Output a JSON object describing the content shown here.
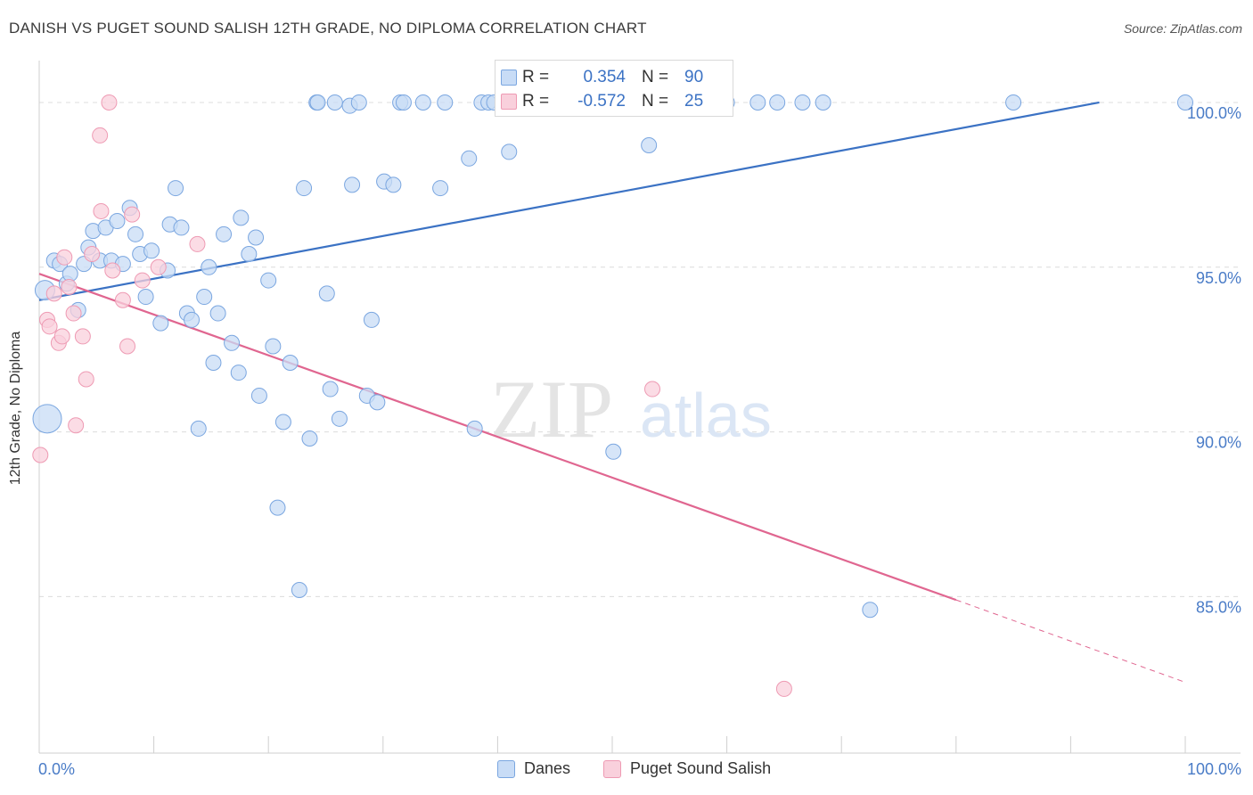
{
  "title": "DANISH VS PUGET SOUND SALISH 12TH GRADE, NO DIPLOMA CORRELATION CHART",
  "source": "Source: ZipAtlas.com",
  "watermark": {
    "part1": "ZIP",
    "part2": "atlas"
  },
  "stats": {
    "danes": {
      "r_label": "R =",
      "r_value": "0.354",
      "n_label": "N =",
      "n_value": "90"
    },
    "puget": {
      "r_label": "R =",
      "r_value": "-0.572",
      "n_label": "N =",
      "n_value": "25"
    }
  },
  "legend": {
    "danes": "Danes",
    "puget": "Puget Sound Salish"
  },
  "colors": {
    "danes_fill": "#c8dcf6",
    "danes_stroke": "#7aa6e0",
    "danes_line": "#3b72c4",
    "puget_fill": "#f9d0dc",
    "puget_stroke": "#ee9ab3",
    "puget_line": "#e06690",
    "tick_text": "#4a7cc7"
  },
  "chart_data": {
    "type": "scatter",
    "title": "DANISH VS PUGET SOUND SALISH 12TH GRADE, NO DIPLOMA CORRELATION CHART",
    "xlabel": "",
    "ylabel": "12th Grade, No Diploma",
    "xlim": [
      0,
      100
    ],
    "ylim": [
      80.25,
      101
    ],
    "x_tick_labels": [
      "0.0%",
      "100.0%"
    ],
    "y_ticks": [
      85,
      90,
      95,
      100
    ],
    "y_tick_labels": [
      "85.0%",
      "90.0%",
      "95.0%",
      "100.0%"
    ],
    "grid": "horizontal dashed",
    "legend_position": "bottom",
    "series": [
      {
        "name": "Danes",
        "r": 0.354,
        "n": 90,
        "trend": {
          "x": [
            0,
            92.5
          ],
          "y": [
            94.0,
            100.0
          ]
        },
        "points": [
          [
            0.7,
            90.4
          ],
          [
            0.5,
            94.3
          ],
          [
            1.3,
            95.2
          ],
          [
            1.8,
            95.1
          ],
          [
            2.4,
            94.5
          ],
          [
            2.7,
            94.8
          ],
          [
            3.4,
            93.7
          ],
          [
            3.9,
            95.1
          ],
          [
            4.3,
            95.6
          ],
          [
            4.7,
            96.1
          ],
          [
            5.3,
            95.2
          ],
          [
            5.8,
            96.2
          ],
          [
            6.3,
            95.2
          ],
          [
            6.8,
            96.4
          ],
          [
            7.3,
            95.1
          ],
          [
            7.9,
            96.8
          ],
          [
            8.4,
            96.0
          ],
          [
            8.8,
            95.4
          ],
          [
            9.3,
            94.1
          ],
          [
            9.8,
            95.5
          ],
          [
            10.6,
            93.3
          ],
          [
            11.2,
            94.9
          ],
          [
            11.4,
            96.3
          ],
          [
            11.9,
            97.4
          ],
          [
            12.4,
            96.2
          ],
          [
            12.9,
            93.6
          ],
          [
            13.3,
            93.4
          ],
          [
            13.9,
            90.1
          ],
          [
            14.4,
            94.1
          ],
          [
            14.8,
            95.0
          ],
          [
            15.2,
            92.1
          ],
          [
            15.6,
            93.6
          ],
          [
            16.1,
            96.0
          ],
          [
            16.8,
            92.7
          ],
          [
            17.4,
            91.8
          ],
          [
            17.6,
            96.5
          ],
          [
            18.3,
            95.4
          ],
          [
            18.9,
            95.9
          ],
          [
            19.2,
            91.1
          ],
          [
            20.0,
            94.6
          ],
          [
            20.4,
            92.6
          ],
          [
            20.8,
            87.7
          ],
          [
            21.3,
            90.3
          ],
          [
            21.9,
            92.1
          ],
          [
            22.7,
            85.2
          ],
          [
            23.1,
            97.4
          ],
          [
            23.6,
            89.8
          ],
          [
            24.2,
            100.0
          ],
          [
            24.3,
            100.0
          ],
          [
            25.1,
            94.2
          ],
          [
            25.4,
            91.3
          ],
          [
            25.8,
            100.0
          ],
          [
            26.2,
            90.4
          ],
          [
            27.1,
            99.9
          ],
          [
            27.3,
            97.5
          ],
          [
            27.9,
            100.0
          ],
          [
            28.6,
            91.1
          ],
          [
            29.0,
            93.4
          ],
          [
            29.5,
            90.9
          ],
          [
            30.1,
            97.6
          ],
          [
            30.9,
            97.5
          ],
          [
            31.5,
            100.0
          ],
          [
            31.8,
            100.0
          ],
          [
            33.5,
            100.0
          ],
          [
            35.0,
            97.4
          ],
          [
            35.4,
            100.0
          ],
          [
            37.5,
            98.3
          ],
          [
            38.0,
            90.1
          ],
          [
            38.6,
            100.0
          ],
          [
            39.2,
            100.0
          ],
          [
            39.7,
            100.0
          ],
          [
            41.0,
            98.5
          ],
          [
            42.0,
            100.0
          ],
          [
            43.4,
            100.0
          ],
          [
            45.4,
            100.0
          ],
          [
            47.5,
            100.0
          ],
          [
            50.1,
            89.4
          ],
          [
            52.0,
            100.0
          ],
          [
            53.2,
            98.7
          ],
          [
            54.3,
            100.0
          ],
          [
            56.5,
            100.0
          ],
          [
            58.3,
            100.0
          ],
          [
            60.0,
            100.0
          ],
          [
            62.7,
            100.0
          ],
          [
            64.4,
            100.0
          ],
          [
            66.6,
            100.0
          ],
          [
            68.4,
            100.0
          ],
          [
            72.5,
            84.6
          ],
          [
            85.0,
            100.0
          ],
          [
            100.0,
            100.0
          ]
        ]
      },
      {
        "name": "Puget Sound Salish",
        "r": -0.572,
        "n": 25,
        "trend": {
          "x": [
            0,
            80.0
          ],
          "y": [
            94.8,
            84.9
          ]
        },
        "trend_dashed_extension": {
          "x": [
            80.0,
            100
          ],
          "y": [
            84.9,
            82.4
          ]
        },
        "points": [
          [
            0.1,
            89.3
          ],
          [
            0.7,
            93.4
          ],
          [
            0.9,
            93.2
          ],
          [
            1.3,
            94.2
          ],
          [
            1.7,
            92.7
          ],
          [
            2.0,
            92.9
          ],
          [
            2.2,
            95.3
          ],
          [
            2.6,
            94.4
          ],
          [
            3.0,
            93.6
          ],
          [
            3.2,
            90.2
          ],
          [
            3.8,
            92.9
          ],
          [
            4.1,
            91.6
          ],
          [
            4.6,
            95.4
          ],
          [
            5.3,
            99.0
          ],
          [
            5.4,
            96.7
          ],
          [
            6.1,
            100.0
          ],
          [
            6.4,
            94.9
          ],
          [
            7.3,
            94.0
          ],
          [
            7.7,
            92.6
          ],
          [
            8.1,
            96.6
          ],
          [
            9.0,
            94.6
          ],
          [
            10.4,
            95.0
          ],
          [
            13.8,
            95.7
          ],
          [
            53.5,
            91.3
          ],
          [
            65.0,
            82.2
          ]
        ]
      }
    ]
  }
}
